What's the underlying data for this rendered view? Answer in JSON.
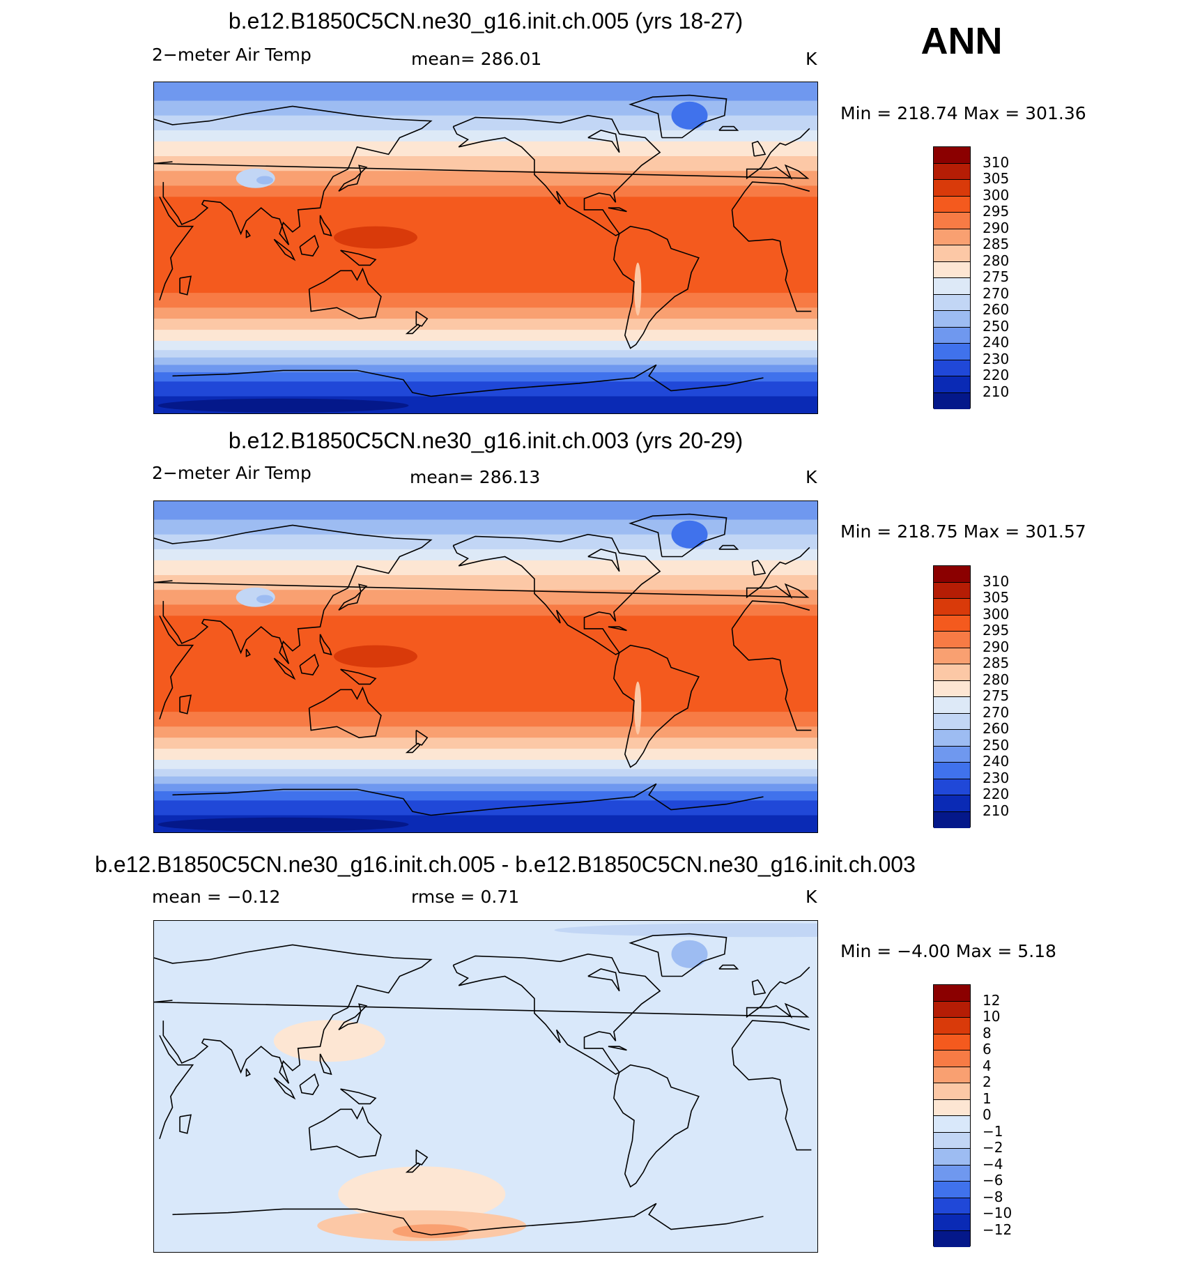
{
  "season": "ANN",
  "panels": [
    {
      "title": "b.e12.B1850C5CN.ne30_g16.init.ch.005 (yrs 18-27)",
      "var_label": "2−meter Air Temp",
      "stat_label": "mean=  286.01",
      "units": "K",
      "minmax": "Min  =  218.74  Max  =  301.36",
      "kind": "abs",
      "colorbar": {
        "labels": [
          "310",
          "305",
          "300",
          "295",
          "290",
          "285",
          "280",
          "275",
          "270",
          "260",
          "250",
          "240",
          "230",
          "220",
          "210"
        ],
        "colors": [
          "#8b0000",
          "#b51d05",
          "#d93a0a",
          "#f45a1e",
          "#f77b45",
          "#f9a071",
          "#fcc8a6",
          "#fde6d3",
          "#dde9f7",
          "#c2d6f5",
          "#9dbcf2",
          "#6f98ef",
          "#4072ec",
          "#2048d8",
          "#0a2ab5",
          "#04188a"
        ]
      }
    },
    {
      "title": "b.e12.B1850C5CN.ne30_g16.init.ch.003 (yrs 20-29)",
      "var_label": "2−meter Air Temp",
      "stat_label": "mean=  286.13",
      "units": "K",
      "minmax": "Min  =  218.75  Max  =  301.57",
      "kind": "abs",
      "colorbar": {
        "labels": [
          "310",
          "305",
          "300",
          "295",
          "290",
          "285",
          "280",
          "275",
          "270",
          "260",
          "250",
          "240",
          "230",
          "220",
          "210"
        ],
        "colors": [
          "#8b0000",
          "#b51d05",
          "#d93a0a",
          "#f45a1e",
          "#f77b45",
          "#f9a071",
          "#fcc8a6",
          "#fde6d3",
          "#dde9f7",
          "#c2d6f5",
          "#9dbcf2",
          "#6f98ef",
          "#4072ec",
          "#2048d8",
          "#0a2ab5",
          "#04188a"
        ]
      }
    },
    {
      "title": "b.e12.B1850C5CN.ne30_g16.init.ch.005 - b.e12.B1850C5CN.ne30_g16.init.ch.003",
      "var_label": "mean =     −0.12",
      "stat_label": "rmse =     0.71",
      "units": "K",
      "minmax": "Min  =    −4.00  Max  =     5.18",
      "kind": "diff",
      "colorbar": {
        "labels": [
          "12",
          "10",
          "8",
          "6",
          "4",
          "2",
          "1",
          "0",
          "−1",
          "−2",
          "−4",
          "−6",
          "−8",
          "−10",
          "−12"
        ],
        "colors": [
          "#8b0000",
          "#b51d05",
          "#d93a0a",
          "#f45a1e",
          "#f77b45",
          "#f9a071",
          "#fcc8a6",
          "#fde6d3",
          "#d9e8fa",
          "#c2d6f5",
          "#9dbcf2",
          "#6f98ef",
          "#4072ec",
          "#2048d8",
          "#0a2ab5",
          "#04188a"
        ]
      }
    }
  ]
}
